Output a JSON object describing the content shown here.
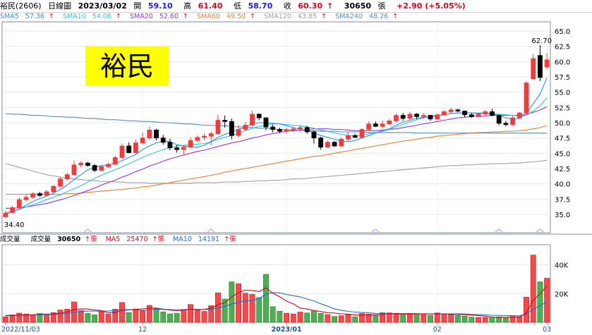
{
  "header": {
    "stock": "裕民(2606)",
    "period": "日線圖",
    "date": "2023/03/02",
    "open_label": "開",
    "open": "59.10",
    "high_label": "高",
    "high": "61.40",
    "low_label": "低",
    "low": "58.70",
    "close_label": "收",
    "close": "60.30",
    "volume": "30650",
    "volume_unit": "張",
    "change": "+2.90 (+5.05%)"
  },
  "stamp": "裕民",
  "colors": {
    "up": "#f03c3c",
    "down": "#000000",
    "vol_up": "#f24b4b",
    "vol_down": "#4caf50",
    "sma5": "#1e90ff",
    "sma10": "#33c1d6",
    "sma20": "#9b30d9",
    "sma60": "#f07a30",
    "sma120": "#a0a0a0",
    "sma240": "#4a90c8",
    "grid": "#e8e8e8"
  },
  "chart_data": [
    {
      "type": "candlestick",
      "legend": [
        {
          "name": "SMA5",
          "value": "57.36",
          "color": "#1e90ff"
        },
        {
          "name": "SMA10",
          "value": "54.06",
          "color": "#33c1d6"
        },
        {
          "name": "SMA20",
          "value": "52.60",
          "color": "#9b30d9"
        },
        {
          "name": "SMA60",
          "value": "49.50",
          "color": "#f07a30"
        },
        {
          "name": "SMA120",
          "value": "43.85",
          "color": "#a0a0a0"
        },
        {
          "name": "SMA240",
          "value": "48.26",
          "color": "#4a90c8"
        }
      ],
      "legend_arrow": "↑",
      "y_ticks": [
        "65.0",
        "62.5",
        "60.0",
        "57.5",
        "55.0",
        "52.5",
        "50.0",
        "47.5",
        "45.0",
        "42.5",
        "40.0",
        "37.5",
        "35.0"
      ],
      "ylim": [
        32.0,
        66.5
      ],
      "annotations": {
        "high": "62.70",
        "low": "34.40"
      },
      "candles": [
        [
          34.6,
          35.6,
          34.4,
          35.2
        ],
        [
          35.3,
          36.4,
          35.1,
          36.1
        ],
        [
          36.1,
          37.8,
          36.0,
          37.4
        ],
        [
          37.4,
          38.3,
          37.2,
          37.8
        ],
        [
          37.8,
          38.6,
          37.6,
          38.4
        ],
        [
          38.4,
          38.7,
          37.9,
          38.1
        ],
        [
          38.1,
          39.0,
          38.0,
          38.7
        ],
        [
          38.7,
          39.8,
          38.5,
          39.6
        ],
        [
          39.6,
          41.1,
          39.4,
          40.8
        ],
        [
          40.8,
          41.8,
          40.5,
          41.5
        ],
        [
          41.5,
          43.8,
          41.4,
          43.1
        ],
        [
          43.1,
          43.7,
          42.7,
          43.4
        ],
        [
          43.4,
          43.6,
          42.8,
          43.0
        ],
        [
          43.0,
          43.2,
          41.9,
          42.2
        ],
        [
          42.2,
          43.0,
          42.0,
          42.8
        ],
        [
          42.8,
          43.5,
          42.6,
          43.2
        ],
        [
          43.2,
          44.6,
          43.1,
          44.3
        ],
        [
          44.3,
          46.6,
          44.0,
          46.2
        ],
        [
          46.2,
          46.8,
          45.0,
          45.1
        ],
        [
          45.1,
          47.2,
          45.0,
          46.7
        ],
        [
          46.7,
          48.4,
          46.5,
          47.5
        ],
        [
          47.5,
          49.4,
          47.2,
          48.8
        ],
        [
          48.8,
          49.0,
          47.1,
          47.5
        ],
        [
          47.5,
          48.0,
          46.4,
          46.8
        ],
        [
          46.8,
          47.4,
          45.5,
          45.9
        ],
        [
          45.9,
          46.3,
          45.1,
          45.6
        ],
        [
          45.6,
          46.3,
          44.8,
          46.0
        ],
        [
          46.0,
          47.6,
          45.8,
          47.1
        ],
        [
          47.1,
          47.9,
          46.8,
          47.6
        ],
        [
          47.6,
          48.3,
          47.1,
          47.8
        ],
        [
          47.8,
          48.5,
          46.3,
          48.2
        ],
        [
          48.2,
          51.3,
          48.0,
          50.4
        ],
        [
          50.4,
          51.2,
          49.2,
          50.2
        ],
        [
          50.2,
          50.7,
          47.3,
          47.9
        ],
        [
          47.9,
          49.6,
          47.6,
          48.9
        ],
        [
          48.9,
          50.1,
          48.7,
          49.6
        ],
        [
          49.6,
          52.0,
          49.4,
          51.4
        ],
        [
          51.4,
          51.5,
          50.4,
          50.8
        ],
        [
          50.8,
          50.9,
          48.8,
          49.3
        ],
        [
          49.3,
          49.7,
          48.4,
          48.9
        ],
        [
          48.9,
          49.2,
          48.3,
          48.6
        ],
        [
          48.6,
          49.2,
          48.3,
          48.8
        ],
        [
          48.8,
          49.4,
          48.5,
          49.0
        ],
        [
          49.0,
          49.6,
          48.5,
          49.2
        ],
        [
          49.2,
          49.5,
          48.2,
          48.5
        ],
        [
          48.5,
          48.7,
          46.6,
          47.5
        ],
        [
          47.5,
          47.7,
          45.6,
          46.0
        ],
        [
          46.0,
          47.1,
          45.9,
          46.8
        ],
        [
          46.8,
          47.0,
          46.0,
          46.2
        ],
        [
          46.2,
          47.6,
          46.0,
          47.3
        ],
        [
          47.3,
          48.4,
          47.0,
          47.9
        ],
        [
          47.9,
          48.2,
          47.5,
          47.6
        ],
        [
          47.6,
          49.1,
          47.4,
          48.9
        ],
        [
          48.9,
          50.2,
          48.7,
          49.8
        ],
        [
          49.8,
          50.2,
          49.3,
          49.4
        ],
        [
          49.4,
          50.4,
          49.0,
          49.8
        ],
        [
          49.8,
          50.6,
          49.6,
          50.3
        ],
        [
          50.3,
          51.5,
          50.0,
          51.2
        ],
        [
          51.2,
          51.6,
          50.3,
          50.7
        ],
        [
          50.7,
          51.8,
          50.4,
          51.4
        ],
        [
          51.4,
          51.6,
          50.6,
          51.0
        ],
        [
          51.0,
          51.6,
          50.7,
          51.2
        ],
        [
          51.2,
          51.3,
          50.3,
          50.6
        ],
        [
          50.6,
          51.5,
          50.4,
          51.3
        ],
        [
          51.3,
          52.1,
          51.1,
          51.8
        ],
        [
          51.8,
          52.5,
          51.5,
          52.1
        ],
        [
          52.1,
          52.3,
          51.7,
          51.9
        ],
        [
          51.9,
          52.0,
          50.9,
          51.3
        ],
        [
          51.3,
          51.6,
          50.8,
          51.0
        ],
        [
          51.0,
          51.6,
          50.8,
          51.4
        ],
        [
          51.4,
          52.1,
          51.2,
          51.8
        ],
        [
          51.8,
          52.3,
          51.0,
          51.2
        ],
        [
          51.2,
          51.4,
          49.6,
          49.9
        ],
        [
          49.9,
          50.3,
          49.4,
          49.7
        ],
        [
          49.7,
          51.1,
          49.5,
          50.8
        ],
        [
          50.8,
          51.8,
          50.6,
          51.6
        ],
        [
          51.6,
          56.8,
          51.5,
          56.5
        ],
        [
          57.2,
          61.2,
          57.0,
          60.5
        ],
        [
          61.0,
          62.7,
          56.8,
          57.4
        ],
        [
          59.1,
          61.4,
          58.7,
          60.3
        ]
      ],
      "sma5": [
        35.0,
        35.4,
        35.9,
        36.5,
        37.1,
        37.6,
        38.0,
        38.5,
        39.1,
        39.8,
        40.7,
        41.5,
        42.3,
        42.7,
        43.0,
        43.1,
        43.3,
        43.8,
        44.3,
        44.8,
        45.6,
        46.2,
        46.7,
        47.0,
        46.9,
        46.4,
        46.2,
        46.0,
        46.0,
        46.3,
        46.9,
        47.6,
        48.1,
        48.5,
        48.9,
        49.3,
        49.8,
        50.0,
        50.0,
        49.9,
        49.8,
        49.5,
        49.2,
        48.9,
        48.7,
        48.4,
        47.9,
        47.6,
        47.3,
        47.0,
        46.9,
        47.1,
        47.5,
        47.9,
        48.3,
        48.7,
        49.0,
        49.6,
        50.1,
        50.4,
        50.7,
        50.9,
        51.0,
        51.1,
        51.3,
        51.5,
        51.6,
        51.6,
        51.6,
        51.5,
        51.5,
        51.4,
        51.2,
        50.8,
        50.6,
        50.7,
        51.5,
        53.1,
        54.7,
        57.36
      ],
      "sma10": [
        35.3,
        35.5,
        35.8,
        36.2,
        36.6,
        37.0,
        37.4,
        37.8,
        38.2,
        38.7,
        39.2,
        39.7,
        40.3,
        40.9,
        41.4,
        41.9,
        42.3,
        42.8,
        43.3,
        43.8,
        44.3,
        44.8,
        45.2,
        45.6,
        45.9,
        46.2,
        46.3,
        46.4,
        46.5,
        46.6,
        46.9,
        47.3,
        47.6,
        47.9,
        48.3,
        48.7,
        49.1,
        49.4,
        49.6,
        49.8,
        49.8,
        49.7,
        49.6,
        49.5,
        49.3,
        49.1,
        48.8,
        48.6,
        48.3,
        48.1,
        47.9,
        47.9,
        48.0,
        48.2,
        48.4,
        48.6,
        48.9,
        49.3,
        49.7,
        50.1,
        50.5,
        50.8,
        51.0,
        51.2,
        51.3,
        51.5,
        51.6,
        51.6,
        51.6,
        51.6,
        51.6,
        51.5,
        51.4,
        51.3,
        51.2,
        51.1,
        51.2,
        51.9,
        52.8,
        54.06
      ],
      "sma20": [
        36.0,
        36.0,
        36.1,
        36.2,
        36.4,
        36.6,
        36.8,
        37.1,
        37.4,
        37.7,
        38.1,
        38.5,
        38.9,
        39.3,
        39.8,
        40.2,
        40.6,
        41.1,
        41.5,
        42.0,
        42.4,
        42.9,
        43.3,
        43.7,
        44.1,
        44.4,
        44.7,
        45.0,
        45.3,
        45.5,
        45.8,
        46.1,
        46.4,
        46.7,
        46.9,
        47.2,
        47.5,
        47.7,
        48.0,
        48.2,
        48.4,
        48.6,
        48.7,
        48.8,
        48.9,
        49.0,
        49.0,
        49.0,
        48.9,
        48.9,
        48.8,
        48.7,
        48.7,
        48.7,
        48.7,
        48.8,
        48.9,
        49.0,
        49.2,
        49.4,
        49.6,
        49.8,
        50.0,
        50.2,
        50.4,
        50.6,
        50.8,
        50.9,
        51.0,
        51.1,
        51.1,
        51.2,
        51.2,
        51.2,
        51.2,
        51.2,
        51.4,
        51.7,
        52.1,
        52.6
      ],
      "sma60": [
        38.3,
        38.3,
        38.3,
        38.3,
        38.3,
        38.3,
        38.3,
        38.3,
        38.3,
        38.4,
        38.4,
        38.5,
        38.6,
        38.7,
        38.8,
        38.9,
        39.0,
        39.1,
        39.2,
        39.3,
        39.5,
        39.6,
        39.8,
        40.0,
        40.2,
        40.4,
        40.6,
        40.8,
        41.0,
        41.2,
        41.4,
        41.6,
        41.9,
        42.1,
        42.3,
        42.5,
        42.7,
        42.9,
        43.1,
        43.3,
        43.5,
        43.7,
        43.9,
        44.1,
        44.3,
        44.5,
        44.6,
        44.8,
        45.0,
        45.2,
        45.4,
        45.6,
        45.8,
        46.0,
        46.2,
        46.4,
        46.6,
        46.8,
        47.0,
        47.1,
        47.3,
        47.5,
        47.6,
        47.8,
        47.9,
        48.0,
        48.1,
        48.2,
        48.3,
        48.4,
        48.4,
        48.5,
        48.5,
        48.6,
        48.6,
        48.7,
        48.8,
        49.0,
        49.2,
        49.5
      ],
      "sma120": [
        43.3,
        43.0,
        42.7,
        42.4,
        42.1,
        41.8,
        41.5,
        41.3,
        41.1,
        40.9,
        40.8,
        40.7,
        40.6,
        40.5,
        40.4,
        40.4,
        40.3,
        40.3,
        40.2,
        40.2,
        40.2,
        40.1,
        40.1,
        40.1,
        40.1,
        40.1,
        40.1,
        40.1,
        40.2,
        40.2,
        40.2,
        40.2,
        40.3,
        40.3,
        40.3,
        40.4,
        40.4,
        40.5,
        40.5,
        40.6,
        40.6,
        40.7,
        40.8,
        40.8,
        40.9,
        41.0,
        41.1,
        41.2,
        41.3,
        41.4,
        41.5,
        41.6,
        41.7,
        41.8,
        41.9,
        42.0,
        42.1,
        42.2,
        42.3,
        42.4,
        42.5,
        42.6,
        42.7,
        42.8,
        42.9,
        43.0,
        43.0,
        43.1,
        43.1,
        43.2,
        43.2,
        43.3,
        43.3,
        43.3,
        43.4,
        43.4,
        43.5,
        43.6,
        43.7,
        43.85
      ],
      "sma240": [
        51.5,
        51.4,
        51.4,
        51.3,
        51.2,
        51.2,
        51.1,
        51.0,
        51.0,
        50.9,
        50.9,
        50.8,
        50.7,
        50.7,
        50.6,
        50.5,
        50.5,
        50.4,
        50.3,
        50.3,
        50.2,
        50.2,
        50.1,
        50.0,
        50.0,
        49.9,
        49.8,
        49.8,
        49.7,
        49.6,
        49.6,
        49.5,
        49.5,
        49.4,
        49.3,
        49.3,
        49.2,
        49.1,
        49.1,
        49.0,
        48.9,
        48.9,
        48.8,
        48.8,
        48.7,
        48.7,
        48.6,
        48.6,
        48.6,
        48.5,
        48.5,
        48.5,
        48.5,
        48.4,
        48.4,
        48.4,
        48.4,
        48.4,
        48.4,
        48.4,
        48.3,
        48.3,
        48.3,
        48.3,
        48.3,
        48.3,
        48.3,
        48.3,
        48.3,
        48.3,
        48.3,
        48.3,
        48.3,
        48.3,
        48.3,
        48.3,
        48.3,
        48.3,
        48.3,
        48.26
      ]
    },
    {
      "type": "bar",
      "legend": [
        {
          "name": "成交量",
          "value": "",
          "color": "#000000"
        },
        {
          "name": "成交量",
          "value": "30650",
          "color": "#000000"
        },
        {
          "name": "MA5",
          "value": "25470",
          "color": "#e0001a"
        },
        {
          "name": "MA10",
          "value": "14191",
          "color": "#1a6fd0"
        }
      ],
      "legend_unit": "張",
      "legend_arrow": "↑",
      "y_ticks": [
        "40K",
        "20K"
      ],
      "ylim": [
        0,
        54000
      ],
      "x_ticks": [
        {
          "label": "2022/11/03",
          "index": 0
        },
        {
          "label": "12",
          "index": 20
        },
        {
          "label": "2023/01",
          "index": 41
        },
        {
          "label": "02",
          "index": 63
        },
        {
          "label": "03",
          "index": 79
        }
      ],
      "volumes": [
        3800,
        5200,
        6400,
        5800,
        4900,
        6100,
        5400,
        6800,
        8600,
        9200,
        14200,
        8100,
        6300,
        5200,
        7400,
        5800,
        9100,
        13800,
        6800,
        9300,
        7900,
        11800,
        9600,
        7200,
        5900,
        6200,
        8800,
        12400,
        9100,
        7600,
        11600,
        20500,
        16200,
        28200,
        26800,
        20300,
        19500,
        17300,
        33400,
        10900,
        7700,
        6300,
        5800,
        7100,
        6500,
        7900,
        6200,
        5400,
        4100,
        4600,
        5300,
        3900,
        6100,
        5700,
        4800,
        6700,
        6600,
        6300,
        6000,
        5600,
        5700,
        5900,
        4900,
        6500,
        5800,
        5400,
        4800,
        4300,
        3600,
        3400,
        3300,
        3700,
        3800,
        3300,
        4100,
        3900,
        17500,
        46800,
        28200,
        30650
      ],
      "ma5": [
        4500,
        4700,
        5000,
        5200,
        5200,
        5700,
        5700,
        5800,
        6400,
        7200,
        8800,
        9400,
        9300,
        8600,
        8200,
        6600,
        6800,
        8300,
        8600,
        9000,
        9400,
        9900,
        9900,
        9200,
        8500,
        8200,
        8600,
        9100,
        8700,
        9000,
        9900,
        12200,
        13800,
        17600,
        20700,
        22400,
        22200,
        21400,
        24000,
        20300,
        17700,
        14800,
        12800,
        9900,
        9300,
        8200,
        7500,
        6700,
        6500,
        5900,
        5700,
        5100,
        5100,
        5100,
        5300,
        5400,
        6000,
        6100,
        6000,
        6100,
        6000,
        5900,
        5800,
        5900,
        5800,
        5700,
        5500,
        5300,
        5000,
        4700,
        4200,
        3700,
        3500,
        3500,
        3600,
        3600,
        6500,
        15500,
        19700,
        25470
      ],
      "ma10": [
        4800,
        4900,
        5000,
        5100,
        5200,
        5300,
        5400,
        5500,
        5800,
        6200,
        6900,
        7400,
        7800,
        7800,
        7800,
        7800,
        8200,
        8800,
        8800,
        8700,
        8300,
        8600,
        9100,
        9000,
        8900,
        8600,
        8900,
        9100,
        8900,
        9000,
        9000,
        10000,
        11100,
        12600,
        13900,
        15000,
        15100,
        16400,
        19700,
        20600,
        20500,
        19400,
        18500,
        17700,
        16200,
        14900,
        12900,
        11200,
        9300,
        8400,
        7600,
        7100,
        6800,
        6700,
        6200,
        5900,
        5900,
        5700,
        5700,
        5700,
        5900,
        5800,
        5900,
        6000,
        5900,
        5900,
        5900,
        5900,
        5500,
        5300,
        5100,
        4900,
        4800,
        4700,
        4600,
        4500,
        5800,
        9000,
        11700,
        14191
      ]
    }
  ]
}
